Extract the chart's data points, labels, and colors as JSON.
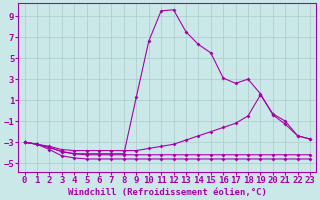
{
  "bg_color": "#cbe8e8",
  "line_color": "#aa00aa",
  "grid_color": "#aacccc",
  "xlabel": "Windchill (Refroidissement éolien,°C)",
  "ylabel_ticks": [
    -5,
    -3,
    -1,
    1,
    3,
    5,
    7,
    9
  ],
  "xlim": [
    -0.5,
    23.5
  ],
  "ylim": [
    -5.8,
    10.2
  ],
  "xticks": [
    0,
    1,
    2,
    3,
    4,
    5,
    6,
    7,
    8,
    9,
    10,
    11,
    12,
    13,
    14,
    15,
    16,
    17,
    18,
    19,
    20,
    21,
    22,
    23
  ],
  "series": [
    [
      -3.0,
      -3.2,
      -3.5,
      -3.9,
      -4.1,
      -4.2,
      -4.2,
      -4.2,
      -4.2,
      -4.2,
      -4.2,
      -4.2,
      -4.2,
      -4.2,
      -4.2,
      -4.2,
      -4.2,
      -4.2,
      -4.2,
      -4.2,
      -4.2,
      -4.2,
      -4.2,
      -4.2
    ],
    [
      -3.0,
      -3.2,
      -3.7,
      -4.3,
      -4.5,
      -4.6,
      -4.6,
      -4.6,
      -4.6,
      -4.6,
      -4.6,
      -4.6,
      -4.6,
      -4.6,
      -4.6,
      -4.6,
      -4.6,
      -4.6,
      -4.6,
      -4.6,
      -4.6,
      -4.6,
      -4.6,
      -4.6
    ],
    [
      -3.0,
      -3.2,
      -3.5,
      -3.9,
      -4.1,
      -4.1,
      -4.1,
      -4.1,
      -4.1,
      1.3,
      6.6,
      9.5,
      9.6,
      7.5,
      6.3,
      5.5,
      3.1,
      2.6,
      3.0,
      1.6,
      -0.4,
      -1.3,
      -2.4,
      -2.7
    ],
    [
      -3.0,
      -3.2,
      -3.4,
      -3.7,
      -3.8,
      -3.8,
      -3.8,
      -3.8,
      -3.8,
      -3.8,
      -3.6,
      -3.4,
      -3.2,
      -2.8,
      -2.4,
      -2.0,
      -1.6,
      -1.2,
      -0.5,
      1.5,
      -0.3,
      -1.0,
      -2.4,
      -2.7
    ]
  ],
  "xlabel_fontsize": 6.5,
  "tick_fontsize": 6.5
}
